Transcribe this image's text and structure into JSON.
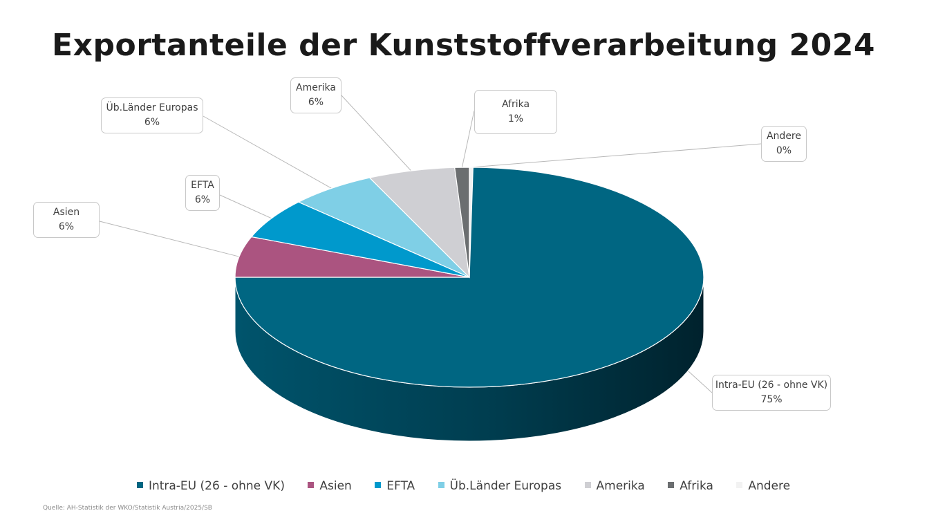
{
  "chart_data": {
    "type": "pie",
    "title": "Exportanteile der Kunststoffverarbeitung 2024",
    "slices": [
      {
        "label": "Intra-EU (26 - ohne VK)",
        "value": 75,
        "value_label": "75%",
        "color": "#006682"
      },
      {
        "label": "Asien",
        "value": 6,
        "value_label": "6%",
        "color": "#ab5480"
      },
      {
        "label": "EFTA",
        "value": 6,
        "value_label": "6%",
        "color": "#0099cc"
      },
      {
        "label": "Üb.Länder Europas",
        "value": 6,
        "value_label": "6%",
        "color": "#7fcfe6"
      },
      {
        "label": "Amerika",
        "value": 6,
        "value_label": "6%",
        "color": "#cfcfd3"
      },
      {
        "label": "Afrika",
        "value": 1,
        "value_label": "1%",
        "color": "#6b6e70"
      },
      {
        "label": "Andere",
        "value": 0,
        "value_label": "0%",
        "color": "#f2f2f2"
      }
    ],
    "legend_position": "bottom",
    "source": "Quelle: AH-Statistik der WKO/Statistik Austria/2025/SB"
  }
}
